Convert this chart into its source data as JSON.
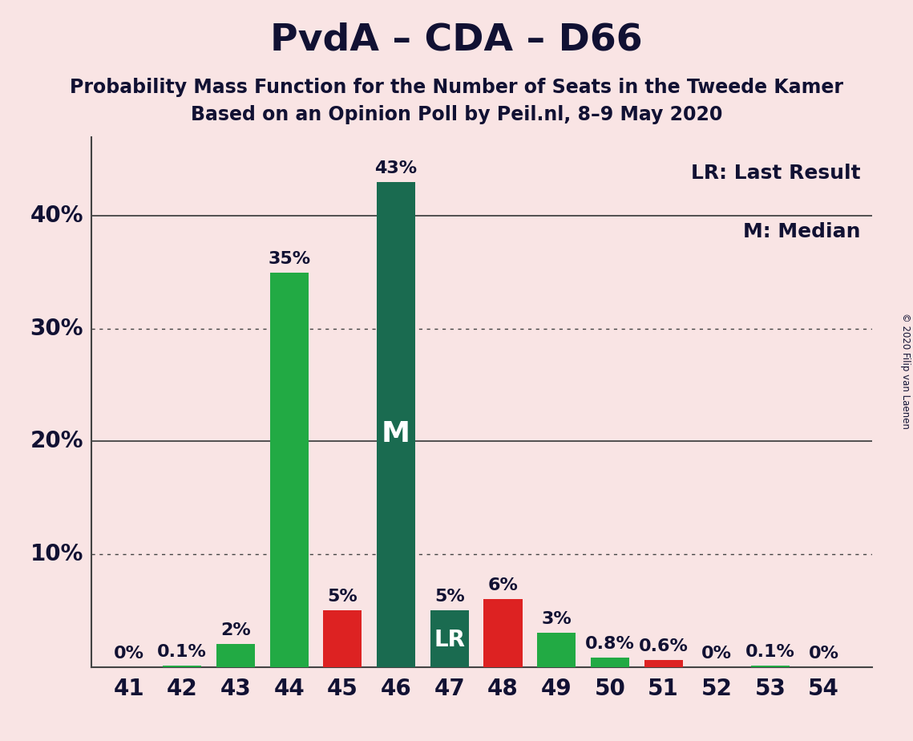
{
  "title": "PvdA – CDA – D66",
  "subtitle1": "Probability Mass Function for the Number of Seats in the Tweede Kamer",
  "subtitle2": "Based on an Opinion Poll by Peil.nl, 8–9 May 2020",
  "copyright": "© 2020 Filip van Laenen",
  "legend_lr": "LR: Last Result",
  "legend_m": "M: Median",
  "background_color": "#f9e4e4",
  "seats": [
    41,
    42,
    43,
    44,
    45,
    46,
    47,
    48,
    49,
    50,
    51,
    52,
    53,
    54
  ],
  "values": [
    0.001,
    0.1,
    2.0,
    35.0,
    5.0,
    43.0,
    5.0,
    6.0,
    3.0,
    0.8,
    0.6,
    0.001,
    0.1,
    0.001
  ],
  "labels": [
    "0%",
    "0.1%",
    "2%",
    "35%",
    "5%",
    "43%",
    "5%",
    "6%",
    "3%",
    "0.8%",
    "0.6%",
    "0%",
    "0.1%",
    "0%"
  ],
  "bar_colors": [
    "#22aa44",
    "#22aa44",
    "#22aa44",
    "#22aa44",
    "#dd2222",
    "#1a6b50",
    "#1a6b50",
    "#dd2222",
    "#22aa44",
    "#22aa44",
    "#dd2222",
    "#22aa44",
    "#22aa44",
    "#22aa44"
  ],
  "median_seat": 46,
  "lr_seat": 47,
  "ylim": [
    0,
    47
  ],
  "ytick_positions": [
    10,
    20,
    30,
    40
  ],
  "ytick_labels": [
    "10%",
    "20%",
    "30%",
    "40%"
  ],
  "solid_gridlines": [
    20,
    40
  ],
  "dotted_gridlines": [
    10,
    30
  ],
  "title_fontsize": 34,
  "subtitle_fontsize": 17,
  "ytick_fontsize": 20,
  "xtick_fontsize": 20,
  "bar_label_fontsize": 16,
  "legend_fontsize": 18,
  "bar_width": 0.72,
  "text_color": "#111133",
  "grid_color": "#444444"
}
